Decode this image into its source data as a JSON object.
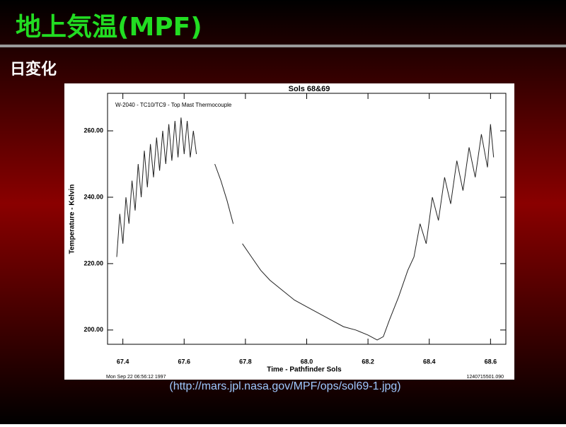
{
  "header": {
    "title": "地上気温(MPF)",
    "subtitle": "日変化"
  },
  "chart_data": {
    "type": "line",
    "title": "Sols 68&69",
    "annotation": "W-2040 - TC10/TC9 - Top Mast Thermocouple",
    "x_label": "Time - Pathfinder Sols",
    "y_label": "Temperature - Kelvin",
    "footer_left": "Mon Sep 22 06:56:12 1997",
    "footer_right": "1240715501.090",
    "x": [
      67.38,
      67.39,
      67.4,
      67.41,
      67.42,
      67.43,
      67.44,
      67.45,
      67.46,
      67.47,
      67.48,
      67.49,
      67.5,
      67.51,
      67.52,
      67.53,
      67.54,
      67.55,
      67.56,
      67.57,
      67.58,
      67.59,
      67.6,
      67.61,
      67.62,
      67.63,
      67.64,
      67.67,
      67.7,
      67.72,
      67.74,
      67.76,
      67.775,
      67.79,
      67.82,
      67.85,
      67.88,
      67.92,
      67.96,
      68.0,
      68.04,
      68.08,
      68.12,
      68.16,
      68.2,
      68.23,
      68.25,
      68.27,
      68.3,
      68.33,
      68.35,
      68.37,
      68.39,
      68.41,
      68.43,
      68.45,
      68.47,
      68.49,
      68.51,
      68.53,
      68.55,
      68.57,
      68.59,
      68.6,
      68.61
    ],
    "series": [
      {
        "color": "#222222",
        "values": [
          222,
          235,
          226,
          240,
          232,
          245,
          236,
          250,
          240,
          254,
          243,
          256,
          246,
          258,
          248,
          260,
          250,
          262,
          251,
          263,
          252,
          264,
          253,
          263,
          252,
          260,
          253,
          null,
          250,
          245,
          239,
          232,
          null,
          226,
          222,
          218,
          215,
          212,
          209,
          207,
          205,
          203,
          201,
          200,
          198.5,
          197,
          198,
          203,
          210,
          218,
          222,
          232,
          226,
          240,
          233,
          246,
          238,
          251,
          242,
          255,
          246,
          259,
          249,
          262,
          252
        ]
      }
    ],
    "xlim": [
      67.35,
      68.65
    ],
    "ylim": [
      195.7,
      271.3
    ],
    "xticks": [
      67.4,
      67.6,
      67.8,
      {
        "value": 68,
        "label": "68.0"
      },
      68.2,
      68.4,
      68.6
    ],
    "yticks": [
      {
        "value": 200,
        "label": "200.00"
      },
      {
        "value": 220,
        "label": "220.00"
      },
      {
        "value": 240,
        "label": "240.00"
      },
      {
        "value": 260,
        "label": "260.00"
      }
    ]
  },
  "caption": "(http://mars.jpl.nasa.gov/MPF/ops/sol69-1.jpg)"
}
